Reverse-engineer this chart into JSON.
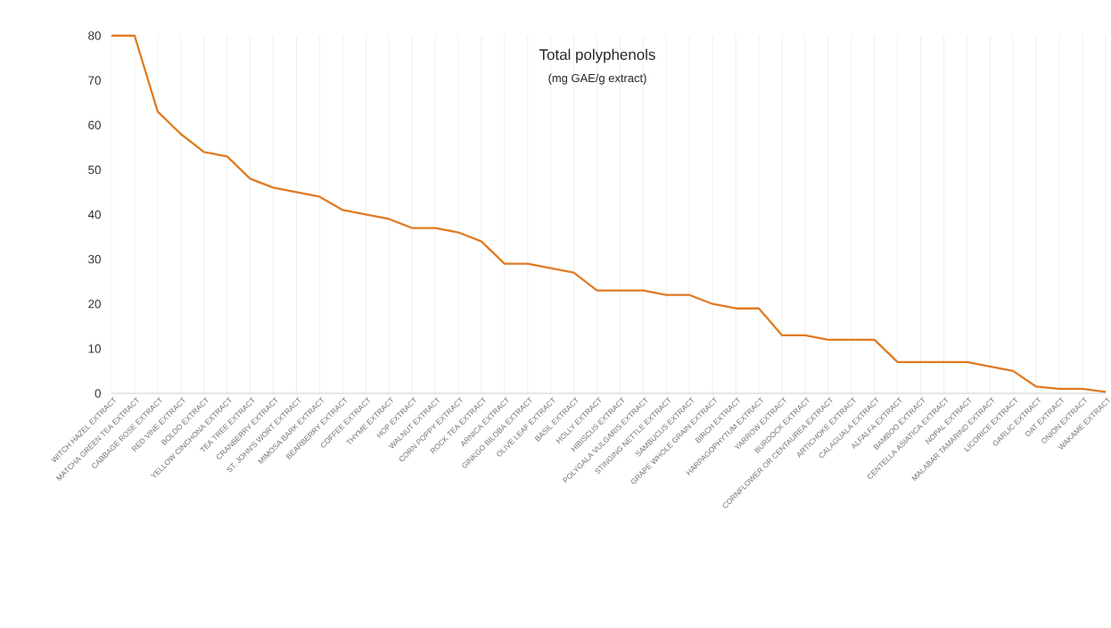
{
  "chart_data": {
    "type": "line",
    "title": "Total polyphenols",
    "subtitle": "(mg GAE/g extract)",
    "categories": [
      "WITCH HAZEL EXTRACT",
      "MATCHA GREEN TEA EXTRACT",
      "CABBAGE ROSE EXTRACT",
      "RED VINE EXTRACT",
      "BOLDO EXTRACT",
      "YELLOW CINCHONA EXTRACT",
      "TEA TREE EXTRACT",
      "CRANBERRY EXTRACT",
      "ST. JOHN'S WORT EXTRACT",
      "MIMOSA BARK EXTRACT",
      "BEARBERRY EXTRACT",
      "COFFEE EXTRACT",
      "THYME EXTRACT",
      "HOP EXTRACT",
      "WALNUT EXTRACT",
      "CORN POPPY EXTRACT",
      "ROCK TEA EXTRACT",
      "ARNICA EXTRACT",
      "GINKGO BILOBA EXTRACT",
      "OLIVE LEAF EXTRACT",
      "BASIL EXTRACT",
      "HOLLY EXTRACT",
      "HIBISCUS EXTRACT",
      "POLYGALA VULGARIS EXTRACT",
      "STINGING NETTLE EXTRACT",
      "SAMBUCUS EXTRACT",
      "GRAPE WHOLE GRAIN EXTRACT",
      "BIRCH EXTRACT",
      "HARPAGOPHYTUM EXTRACT",
      "YARROW EXTRACT",
      "BURDOCK EXTRACT",
      "CORNFLOWER OR CENTAUREA EXTRACT",
      "ARTICHOKE EXTRACT",
      "CALAGUALA EXTRACT",
      "ALFALFA EXTRACT",
      "BAMBOO EXTRACT",
      "CENTELLA ASIATICA EXTRACT",
      "NOPAL EXTRACT",
      "MALABAR TAMARIND EXTRACT",
      "LICORICE EXTRACT",
      "GARLIC EXTRACT",
      "OAT EXTRACT",
      "ONION EXTRACT",
      "WAKAME EXTRACT"
    ],
    "values": [
      80,
      80,
      63,
      58,
      54,
      53,
      48,
      46,
      45,
      44,
      41,
      40,
      39,
      37,
      37,
      36,
      34,
      29,
      29,
      28,
      27,
      23,
      23,
      23,
      22,
      22,
      20,
      19,
      19,
      13,
      13,
      12,
      12,
      12,
      7,
      7,
      7,
      7,
      6,
      5,
      1.5,
      1,
      1,
      0.3
    ],
    "color": "#e07b22",
    "ylim": [
      0,
      80
    ],
    "yticks": [
      0,
      10,
      20,
      30,
      40,
      50,
      60,
      70,
      80
    ],
    "grid": "x",
    "marker": "none",
    "line_style": "solid"
  }
}
